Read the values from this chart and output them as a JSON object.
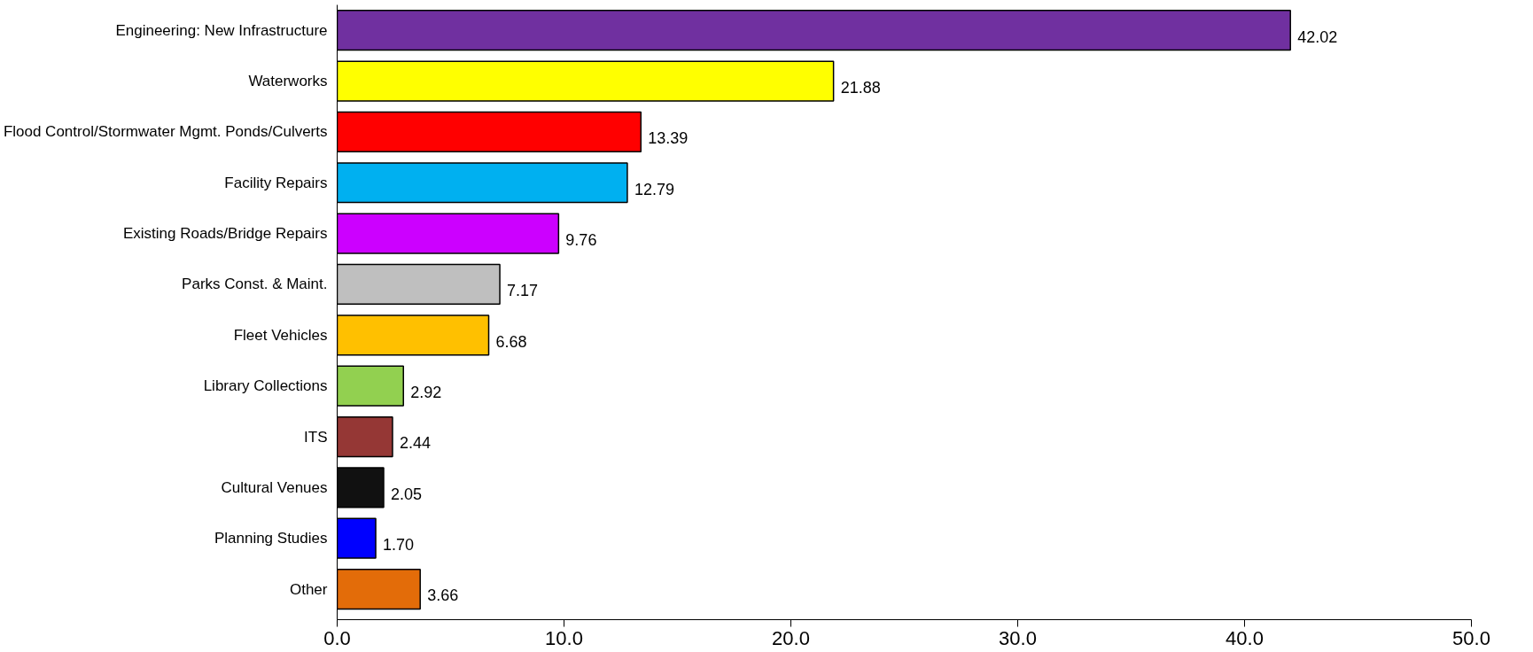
{
  "chart_data": {
    "type": "bar",
    "orientation": "horizontal",
    "categories": [
      "Engineering: New Infrastructure",
      "Waterworks",
      "Flood Control/Stormwater Mgmt. Ponds/Culverts",
      "Facility Repairs",
      "Existing Roads/Bridge Repairs",
      "Parks Const. & Maint.",
      "Fleet Vehicles",
      "Library Collections",
      "ITS",
      "Cultural Venues",
      "Planning Studies",
      "Other"
    ],
    "values": [
      42.02,
      21.88,
      13.39,
      12.79,
      9.76,
      7.17,
      6.68,
      2.92,
      2.44,
      2.05,
      1.7,
      3.66
    ],
    "value_labels": [
      "42.02",
      "21.88",
      "13.39",
      "12.79",
      "9.76",
      "7.17",
      "6.68",
      "2.92",
      "2.44",
      "2.05",
      "1.70",
      "3.66"
    ],
    "colors": [
      "#7030a0",
      "#ffff00",
      "#ff0000",
      "#00b0f0",
      "#cc00ff",
      "#bfbfbf",
      "#ffc000",
      "#92d050",
      "#953735",
      "#111111",
      "#0000ff",
      "#e36c09"
    ],
    "xlim": [
      0,
      50
    ],
    "xticks": [
      {
        "value": 0,
        "label": "0.0"
      },
      {
        "value": 10,
        "label": "10.0"
      },
      {
        "value": 20,
        "label": "20.0"
      },
      {
        "value": 30,
        "label": "30.0"
      },
      {
        "value": 40,
        "label": "40.0"
      },
      {
        "value": 50,
        "label": "50.0"
      }
    ],
    "grid": false
  }
}
